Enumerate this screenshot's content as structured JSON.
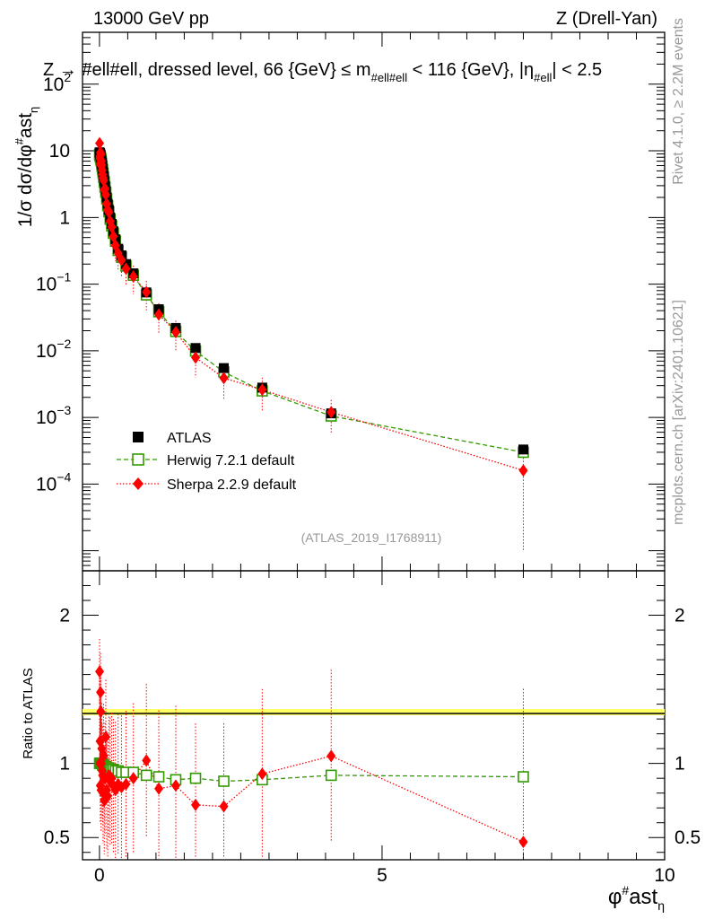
{
  "header": {
    "left": "13000 GeV pp",
    "right": "Z (Drell-Yan)"
  },
  "side_text": {
    "rivet": "Rivet 4.1.0, ≥ 2.2M events",
    "mcplots": "mcplots.cern.ch [arXiv:2401.10621]"
  },
  "chart_data": {
    "type": "scatter",
    "title": "Z → #ell#ell, dressed level, 66 {GeV} ≤ m_#ell#ell < 116 {GeV}, |η_#ell| < 2.5",
    "title_parts": {
      "lead": "Z → #ell#ell, dressed level, 66 {GeV} ≤ m",
      "sub1": "#ell#ell",
      "mid": " < 116 {GeV}, |η",
      "sub2": "#ell",
      "tail": "| < 2.5"
    },
    "analysis_id": "(ATLAS_2019_I1768911)",
    "xlabel": {
      "base": "φ",
      "sup": "#",
      "mid": "ast",
      "sub": "η"
    },
    "ylabel": {
      "lead": "1/σ dσ/dφ",
      "sup": "#",
      "mid": "ast",
      "sub": "η"
    },
    "ratio_ylabel": "Ratio to ATLAS",
    "xlim": [
      -0.3,
      10
    ],
    "ylim_main": [
      5e-06,
      600
    ],
    "ylim_ratio": [
      0.35,
      2.3
    ],
    "x_ticks": [
      "0",
      "5",
      "10"
    ],
    "y_main_ticks": [
      {
        "value": 0.0001,
        "base": "10",
        "exp": "−4"
      },
      {
        "value": 0.001,
        "base": "10",
        "exp": "−3"
      },
      {
        "value": 0.01,
        "base": "10",
        "exp": "−2"
      },
      {
        "value": 0.1,
        "base": "10",
        "exp": "−1"
      },
      {
        "value": 1,
        "base": "1",
        "exp": ""
      },
      {
        "value": 10,
        "base": "10",
        "exp": ""
      },
      {
        "value": 100,
        "base": "10",
        "exp": "2"
      }
    ],
    "y_ratio_ticks": [
      {
        "value": 0.5,
        "label": "0.5"
      },
      {
        "value": 1,
        "label": "1"
      },
      {
        "value": 2,
        "label": "2"
      }
    ],
    "x": [
      0.002,
      0.006,
      0.01,
      0.014,
      0.018,
      0.023,
      0.028,
      0.034,
      0.04,
      0.047,
      0.055,
      0.064,
      0.074,
      0.085,
      0.098,
      0.112,
      0.128,
      0.146,
      0.166,
      0.189,
      0.216,
      0.246,
      0.283,
      0.33,
      0.39,
      0.47,
      0.6,
      0.83,
      1.05,
      1.35,
      1.7,
      2.2,
      2.88,
      4.1,
      7.5
    ],
    "legend": [
      {
        "name": "ATLAS",
        "style": "data"
      },
      {
        "name": "Herwig 7.2.1 default",
        "style": "herwig"
      },
      {
        "name": "Sherpa 2.2.9 default",
        "style": "sherpa"
      }
    ],
    "series": [
      {
        "name": "ATLAS",
        "color": "#000000",
        "marker": "filled-square",
        "values": [
          9.5,
          9.3,
          9.1,
          8.8,
          8.4,
          8.0,
          7.6,
          7.1,
          6.6,
          6.0,
          5.4,
          4.8,
          4.2,
          3.6,
          3.0,
          2.5,
          2.0,
          1.6,
          1.3,
          1.0,
          0.8,
          0.62,
          0.47,
          0.34,
          0.27,
          0.2,
          0.145,
          0.075,
          0.042,
          0.022,
          0.011,
          0.0055,
          0.0028,
          0.00115,
          0.00033
        ]
      },
      {
        "name": "Herwig 7.2.1 default",
        "color": "#339900",
        "marker": "open-square",
        "line": "dashed",
        "values": [
          8.8,
          8.6,
          8.5,
          8.2,
          7.9,
          7.6,
          7.2,
          6.8,
          6.3,
          5.8,
          5.2,
          4.6,
          4.0,
          3.4,
          2.85,
          2.38,
          1.9,
          1.5,
          1.22,
          0.94,
          0.75,
          0.58,
          0.44,
          0.32,
          0.254,
          0.187,
          0.136,
          0.069,
          0.0385,
          0.0195,
          0.0099,
          0.0048,
          0.0025,
          0.00105,
          0.0003
        ],
        "ratio": [
          1.0,
          1.0,
          1.0,
          1.0,
          1.0,
          1.0,
          1.0,
          1.0,
          1.0,
          1.0,
          0.99,
          0.99,
          0.99,
          0.98,
          0.98,
          0.98,
          0.97,
          0.97,
          0.97,
          0.96,
          0.96,
          0.96,
          0.95,
          0.95,
          0.94,
          0.94,
          0.94,
          0.92,
          0.91,
          0.89,
          0.9,
          0.88,
          0.89,
          0.92,
          0.91
        ]
      },
      {
        "name": "Sherpa 2.2.9 default",
        "color": "#ff0000",
        "marker": "filled-diamond",
        "line": "dotted",
        "values": [
          13.0,
          8.2,
          7.6,
          6.5,
          9.4,
          8.8,
          6.0,
          7.0,
          6.1,
          5.1,
          4.4,
          3.9,
          3.6,
          2.6,
          2.7,
          2.2,
          1.6,
          1.3,
          1.2,
          0.88,
          0.72,
          0.52,
          0.38,
          0.29,
          0.23,
          0.17,
          0.13,
          0.076,
          0.035,
          0.019,
          0.0079,
          0.0039,
          0.0026,
          0.0012,
          0.00016
        ],
        "ratio": [
          1.62,
          1.0,
          1.15,
          0.85,
          1.48,
          1.35,
          0.82,
          1.0,
          1.1,
          0.95,
          0.92,
          0.8,
          1.05,
          0.75,
          0.9,
          1.18,
          0.82,
          0.78,
          0.92,
          0.88,
          0.9,
          0.85,
          0.82,
          0.86,
          0.84,
          0.86,
          0.9,
          1.02,
          0.83,
          0.85,
          0.72,
          0.71,
          0.93,
          1.05,
          0.47
        ]
      }
    ]
  }
}
